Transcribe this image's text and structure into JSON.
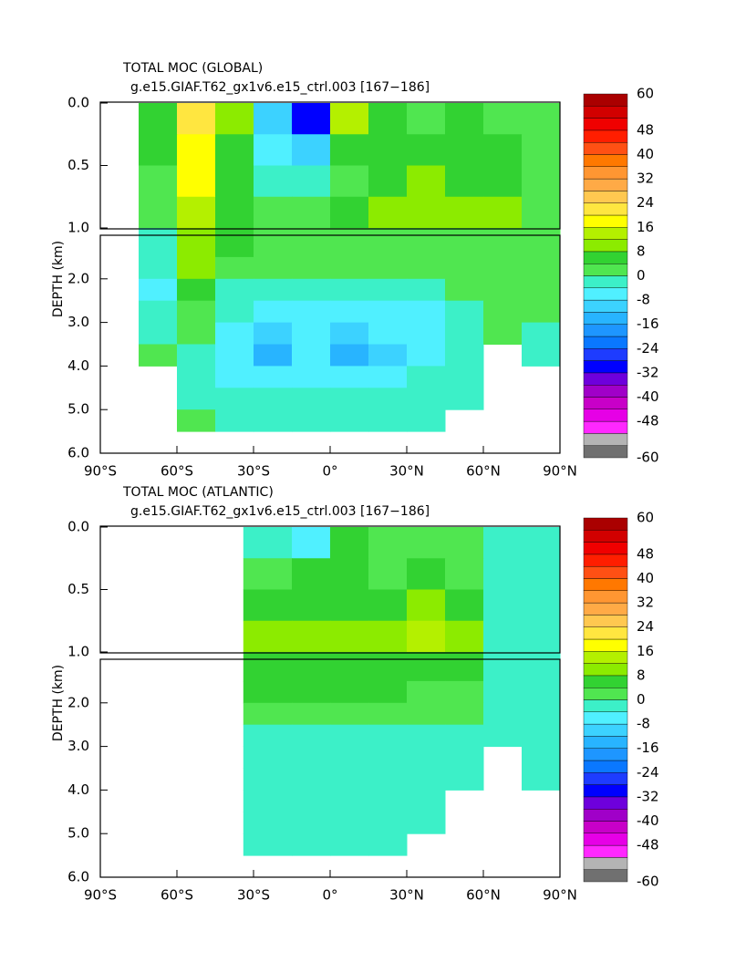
{
  "chart_data": [
    {
      "type": "contour",
      "title": "TOTAL MOC (GLOBAL)",
      "subtitle": "g.e15.GIAF.T62_gx1v6.e15_ctrl.003 [167−186]",
      "ylabel": "DEPTH (km)",
      "xlim": [
        -90,
        90
      ],
      "xticks": [
        {
          "value": -90,
          "label": "90°S"
        },
        {
          "value": -60,
          "label": "60°S"
        },
        {
          "value": -30,
          "label": "30°S"
        },
        {
          "value": 0,
          "label": "0°"
        },
        {
          "value": 30,
          "label": "30°N"
        },
        {
          "value": 60,
          "label": "60°N"
        },
        {
          "value": 90,
          "label": "90°N"
        }
      ],
      "ylim": [
        0,
        6
      ],
      "yticks": [
        {
          "value": 0,
          "label": "0.0"
        },
        {
          "value": 0.5,
          "label": "0.5"
        },
        {
          "value": 1,
          "label": "1.0"
        },
        {
          "value": 2,
          "label": "2.0"
        },
        {
          "value": 3,
          "label": "3.0"
        },
        {
          "value": 4,
          "label": "4.0"
        },
        {
          "value": 5,
          "label": "5.0"
        },
        {
          "value": 6,
          "label": "6.0"
        }
      ],
      "lat_edges": [
        -90,
        -75,
        -60,
        -45,
        -30,
        -15,
        0,
        15,
        30,
        45,
        60,
        75,
        90
      ],
      "depth_edges": [
        0,
        0.25,
        0.5,
        0.75,
        1,
        1.5,
        2,
        2.5,
        3,
        3.5,
        4,
        4.5,
        5,
        5.5,
        6
      ],
      "values": [
        [
          null,
          4,
          20,
          10,
          -10,
          -30,
          14,
          6,
          2,
          4,
          2,
          2
        ],
        [
          null,
          4,
          18,
          6,
          -6,
          -10,
          4,
          4,
          4,
          6,
          4,
          2
        ],
        [
          null,
          2,
          16,
          4,
          -2,
          -2,
          2,
          4,
          8,
          6,
          4,
          2
        ],
        [
          null,
          2,
          14,
          4,
          0,
          2,
          6,
          8,
          10,
          10,
          8,
          2
        ],
        [
          null,
          -2,
          10,
          4,
          2,
          2,
          2,
          2,
          2,
          2,
          2,
          2
        ],
        [
          null,
          -4,
          8,
          2,
          0,
          2,
          2,
          2,
          2,
          2,
          2,
          2
        ],
        [
          null,
          -6,
          4,
          -2,
          -2,
          -2,
          -2,
          -2,
          -2,
          0,
          2,
          2
        ],
        [
          null,
          -4,
          2,
          -4,
          -6,
          -6,
          -6,
          -6,
          -6,
          -4,
          0,
          0
        ],
        [
          null,
          -2,
          0,
          -6,
          -10,
          -8,
          -10,
          -8,
          -6,
          -4,
          0,
          -2
        ],
        [
          null,
          0,
          -2,
          -8,
          -14,
          -8,
          -14,
          -10,
          -6,
          -2,
          null,
          -2
        ],
        [
          null,
          null,
          -2,
          -6,
          -8,
          -6,
          -8,
          -6,
          -4,
          -2,
          null,
          null
        ],
        [
          null,
          null,
          -2,
          -4,
          -4,
          -4,
          -4,
          -4,
          -4,
          -2,
          null,
          null
        ],
        [
          null,
          null,
          0,
          -2,
          -2,
          -2,
          -2,
          -2,
          -2,
          null,
          null,
          null
        ],
        [
          null,
          null,
          null,
          null,
          null,
          null,
          null,
          null,
          null,
          null,
          null,
          null
        ]
      ],
      "colorbar": {
        "ticks": [
          60,
          48,
          40,
          32,
          24,
          16,
          8,
          0,
          -8,
          -16,
          -24,
          -32,
          -40,
          -48,
          -60
        ],
        "levels": [
          -60,
          -56,
          -52,
          -48,
          -44,
          -40,
          -36,
          -32,
          -28,
          -24,
          -20,
          -16,
          -12,
          -8,
          -4,
          0,
          4,
          8,
          12,
          16,
          20,
          24,
          28,
          32,
          36,
          40,
          44,
          48,
          52,
          56,
          60
        ],
        "colors": [
          "#707070",
          "#b4b4b4",
          "#ff28ff",
          "#e600e6",
          "#c800c8",
          "#a000c8",
          "#6e00dc",
          "#0000ff",
          "#1e3cff",
          "#0a78ff",
          "#1e96ff",
          "#28b4ff",
          "#3cd2ff",
          "#50f0ff",
          "#3cf0c8",
          "#50e650",
          "#32d232",
          "#8ceb00",
          "#b4f000",
          "#ffff00",
          "#ffe640",
          "#ffc850",
          "#ffaa46",
          "#ff9632",
          "#ff7800",
          "#ff5014",
          "#ff1e00",
          "#f00000",
          "#d20000",
          "#aa0000"
        ]
      }
    },
    {
      "type": "contour",
      "title": "TOTAL MOC (ATLANTIC)",
      "subtitle": "g.e15.GIAF.T62_gx1v6.e15_ctrl.003 [167−186]",
      "ylabel": "DEPTH (km)",
      "xlim": [
        -90,
        90
      ],
      "xticks": [
        {
          "value": -90,
          "label": "90°S"
        },
        {
          "value": -60,
          "label": "60°S"
        },
        {
          "value": -30,
          "label": "30°S"
        },
        {
          "value": 0,
          "label": "0°"
        },
        {
          "value": 30,
          "label": "30°N"
        },
        {
          "value": 60,
          "label": "60°N"
        },
        {
          "value": 90,
          "label": "90°N"
        }
      ],
      "ylim": [
        0,
        6
      ],
      "yticks": [
        {
          "value": 0,
          "label": "0.0"
        },
        {
          "value": 0.5,
          "label": "0.5"
        },
        {
          "value": 1,
          "label": "1.0"
        },
        {
          "value": 2,
          "label": "2.0"
        },
        {
          "value": 3,
          "label": "3.0"
        },
        {
          "value": 4,
          "label": "4.0"
        },
        {
          "value": 5,
          "label": "5.0"
        },
        {
          "value": 6,
          "label": "6.0"
        }
      ],
      "lat_edges": [
        -90,
        -75,
        -60,
        -45,
        -34,
        -15,
        0,
        15,
        30,
        45,
        60,
        75,
        90
      ],
      "depth_edges": [
        0,
        0.25,
        0.5,
        0.75,
        1,
        1.5,
        2,
        2.5,
        3,
        3.5,
        4,
        4.5,
        5,
        5.5,
        6
      ],
      "values": [
        [
          null,
          null,
          null,
          null,
          -4,
          -8,
          4,
          2,
          2,
          2,
          -2,
          -2
        ],
        [
          null,
          null,
          null,
          null,
          2,
          4,
          4,
          2,
          4,
          2,
          -2,
          -2
        ],
        [
          null,
          null,
          null,
          null,
          4,
          6,
          6,
          6,
          8,
          6,
          -2,
          -2
        ],
        [
          null,
          null,
          null,
          null,
          10,
          10,
          10,
          10,
          12,
          10,
          -2,
          -2
        ],
        [
          null,
          null,
          null,
          null,
          6,
          6,
          6,
          6,
          6,
          4,
          -2,
          -2
        ],
        [
          null,
          null,
          null,
          null,
          4,
          4,
          4,
          4,
          2,
          2,
          -2,
          -2
        ],
        [
          null,
          null,
          null,
          null,
          2,
          2,
          2,
          2,
          2,
          0,
          -2,
          -2
        ],
        [
          null,
          null,
          null,
          null,
          -2,
          -2,
          -2,
          -2,
          -2,
          -2,
          -2,
          -2
        ],
        [
          null,
          null,
          null,
          null,
          -2,
          -2,
          -2,
          -2,
          -2,
          -2,
          null,
          -2
        ],
        [
          null,
          null,
          null,
          null,
          -2,
          -2,
          -2,
          -2,
          -2,
          -2,
          null,
          -2
        ],
        [
          null,
          null,
          null,
          null,
          -2,
          -2,
          -2,
          -2,
          -2,
          null,
          null,
          null
        ],
        [
          null,
          null,
          null,
          null,
          -2,
          -2,
          -2,
          -2,
          -2,
          null,
          null,
          null
        ],
        [
          null,
          null,
          null,
          null,
          -2,
          -2,
          -2,
          -2,
          null,
          null,
          null,
          null
        ],
        [
          null,
          null,
          null,
          null,
          null,
          null,
          null,
          null,
          null,
          null,
          null,
          null
        ]
      ],
      "colorbar": {
        "ticks": [
          60,
          48,
          40,
          32,
          24,
          16,
          8,
          0,
          -8,
          -16,
          -24,
          -32,
          -40,
          -48,
          -60
        ],
        "levels": [
          -60,
          -56,
          -52,
          -48,
          -44,
          -40,
          -36,
          -32,
          -28,
          -24,
          -20,
          -16,
          -12,
          -8,
          -4,
          0,
          4,
          8,
          12,
          16,
          20,
          24,
          28,
          32,
          36,
          40,
          44,
          48,
          52,
          56,
          60
        ],
        "colors": [
          "#707070",
          "#b4b4b4",
          "#ff28ff",
          "#e600e6",
          "#c800c8",
          "#a000c8",
          "#6e00dc",
          "#0000ff",
          "#1e3cff",
          "#0a78ff",
          "#1e96ff",
          "#28b4ff",
          "#3cd2ff",
          "#50f0ff",
          "#3cf0c8",
          "#50e650",
          "#32d232",
          "#8ceb00",
          "#b4f000",
          "#ffff00",
          "#ffe640",
          "#ffc850",
          "#ffaa46",
          "#ff9632",
          "#ff7800",
          "#ff5014",
          "#ff1e00",
          "#f00000",
          "#d20000",
          "#aa0000"
        ]
      }
    }
  ]
}
